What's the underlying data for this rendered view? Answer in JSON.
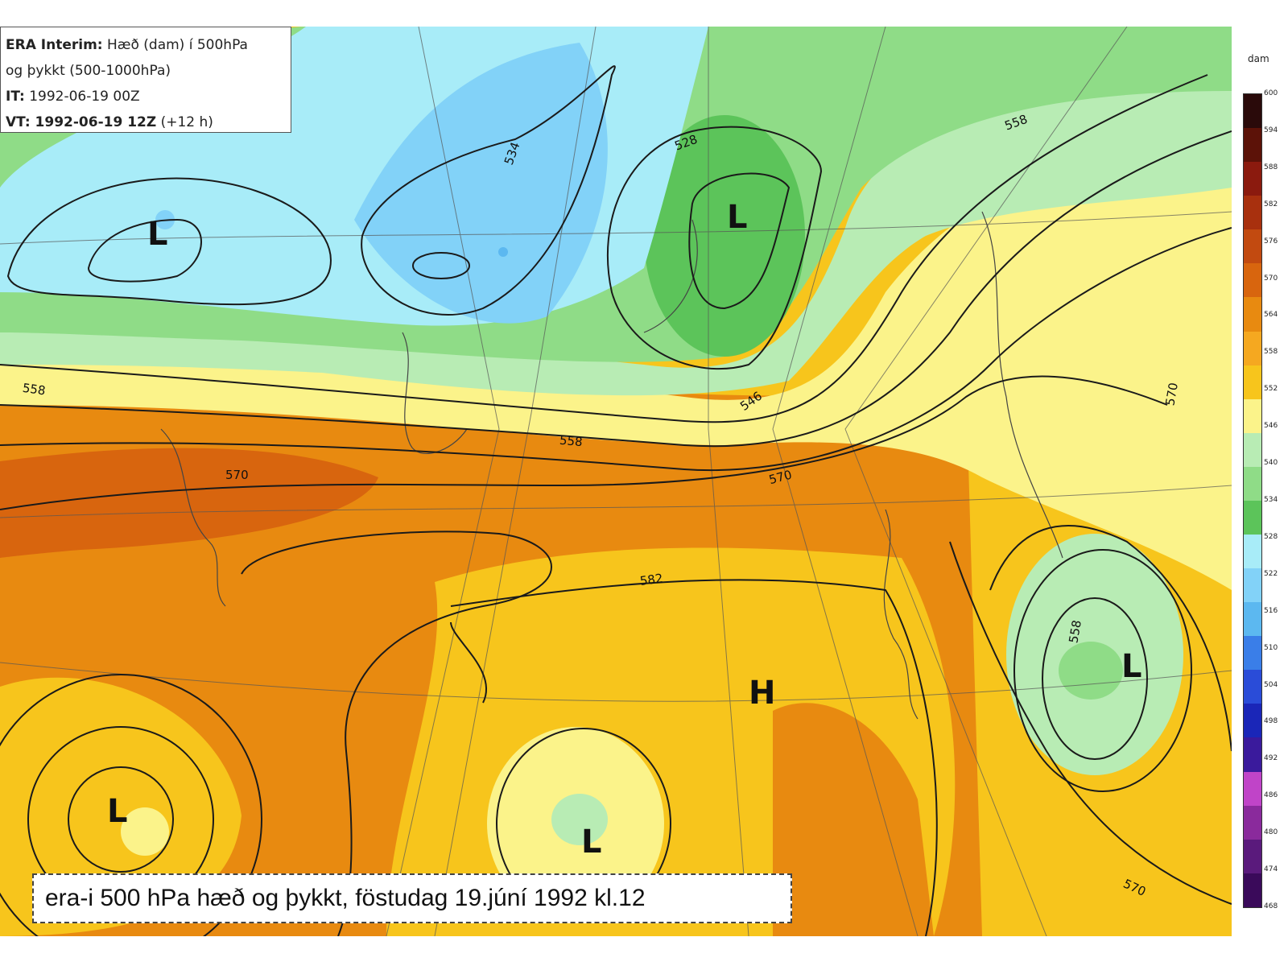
{
  "header": {
    "model_label": "ERA Interim:",
    "line1_rest": "Hæð (dam) í 500hPa",
    "line2": "og þykkt (500-1000hPa)",
    "it_label": "IT:",
    "it_value": "1992-06-19 00Z",
    "vt_label": "VT: 1992-06-19 12Z",
    "vt_rest": "(+12 h)"
  },
  "caption": "era-i 500 hPa hæð og þykkt, föstudag 19.júní 1992 kl.12",
  "colorbar": {
    "unit": "dam",
    "levels": [
      "600",
      "594",
      "588",
      "582",
      "576",
      "570",
      "564",
      "558",
      "552",
      "546",
      "540",
      "534",
      "528",
      "522",
      "516",
      "510",
      "504",
      "498",
      "492",
      "486",
      "480",
      "474",
      "468"
    ],
    "colors": [
      "#2a0a0a",
      "#5c1208",
      "#8b1a0e",
      "#a8300e",
      "#c24a10",
      "#d8650e",
      "#e88a10",
      "#f5a820",
      "#f7c51c",
      "#fbf38a",
      "#b8ecb4",
      "#8fdc87",
      "#5cc45a",
      "#a8ecf8",
      "#82d2f8",
      "#5cb8f0",
      "#3a7ee8",
      "#2a4cd8",
      "#1a26b8",
      "#3a1a9c",
      "#c044c8",
      "#8a2a9c",
      "#5a1a7c",
      "#3a0a5a"
    ]
  },
  "contour_labels": [
    "534",
    "528",
    "558",
    "546",
    "558",
    "570",
    "570",
    "558",
    "570",
    "582",
    "558",
    "570"
  ],
  "pressure_centers": [
    "L",
    "L",
    "H",
    "L",
    "L",
    "L"
  ],
  "colors": {
    "ocean_base": "#f7c51c",
    "warm": "#e88a10",
    "hot": "#d8650e",
    "cool_yellow": "#fbf38a",
    "mint": "#b8ecb4",
    "green": "#8fdc87",
    "dark_green": "#5cc45a",
    "light_blue": "#a8ecf8",
    "blue": "#82d2f8",
    "mid_blue": "#5cb8f0"
  }
}
